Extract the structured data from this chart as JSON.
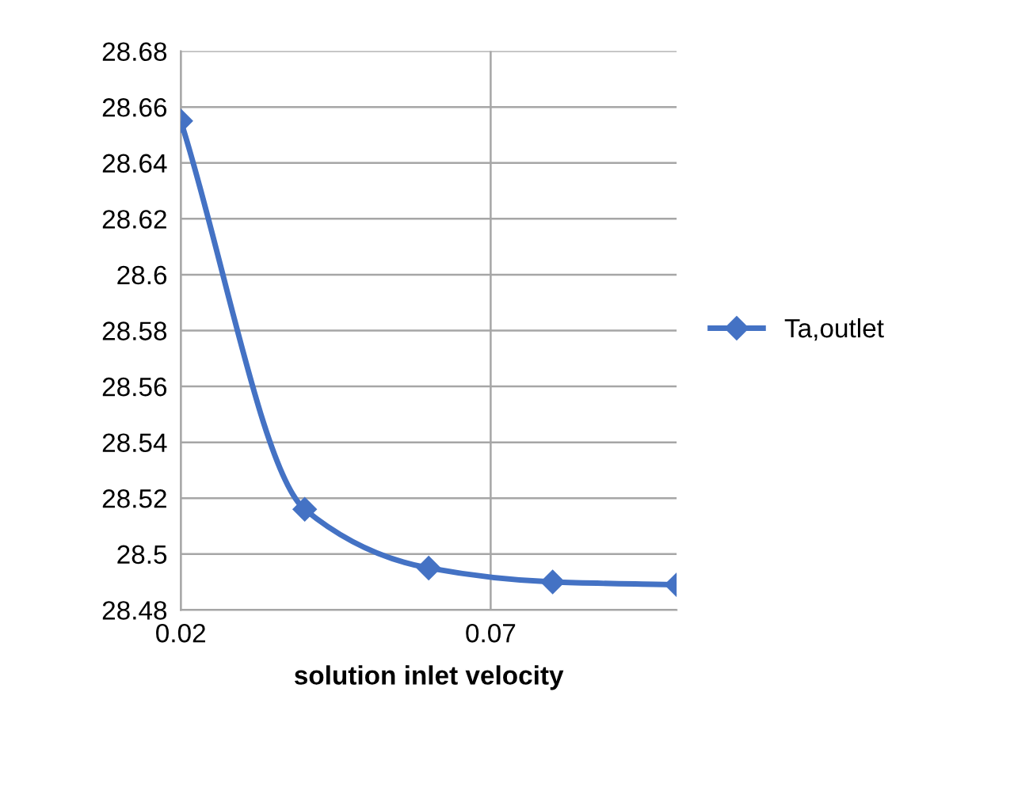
{
  "chart_data": {
    "type": "line",
    "xlabel": "solution inlet velocity",
    "x": [
      0.02,
      0.04,
      0.06,
      0.08,
      0.1
    ],
    "series": [
      {
        "name": "Ta,outlet",
        "color": "#4472c4",
        "values": [
          28.655,
          28.516,
          28.495,
          28.49,
          28.489
        ]
      }
    ],
    "xlim": [
      0.02,
      0.1
    ],
    "xticks": [
      0.02,
      0.07
    ],
    "ylim": [
      28.48,
      28.68
    ],
    "yticks": [
      {
        "value": 28.48,
        "label": "28.48"
      },
      {
        "value": 28.5,
        "label": "28.5"
      },
      {
        "value": 28.52,
        "label": "28.52"
      },
      {
        "value": 28.54,
        "label": "28.54"
      },
      {
        "value": 28.56,
        "label": "28.56"
      },
      {
        "value": 28.58,
        "label": "28.58"
      },
      {
        "value": 28.6,
        "label": "28.6"
      },
      {
        "value": 28.62,
        "label": "28.62"
      },
      {
        "value": 28.64,
        "label": "28.64"
      },
      {
        "value": 28.66,
        "label": "28.66"
      },
      {
        "value": 28.68,
        "label": "28.68"
      }
    ],
    "grid": true,
    "legend": "right",
    "marker": "diamond",
    "line_style": "solid"
  }
}
